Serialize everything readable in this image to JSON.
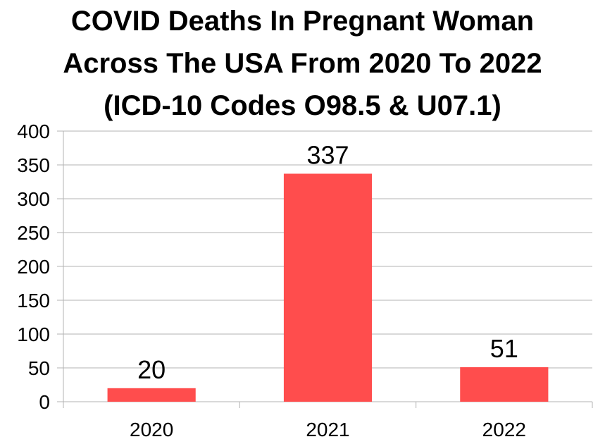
{
  "chart_data": {
    "type": "bar",
    "title_lines": [
      "COVID Deaths In Pregnant Woman",
      "Across The USA From 2020 To 2022",
      "(ICD-10 Codes O98.5 & U07.1)"
    ],
    "categories": [
      "2020",
      "2021",
      "2022"
    ],
    "values": [
      20,
      337,
      51
    ],
    "data_labels": [
      "20",
      "337",
      "51"
    ],
    "xlabel": "",
    "ylabel": "",
    "ylim": [
      0,
      400
    ],
    "yticks": [
      "0",
      "50",
      "100",
      "150",
      "200",
      "250",
      "300",
      "350",
      "400"
    ],
    "grid": true,
    "legend": "none",
    "bar_color": "#ff4d4d"
  }
}
